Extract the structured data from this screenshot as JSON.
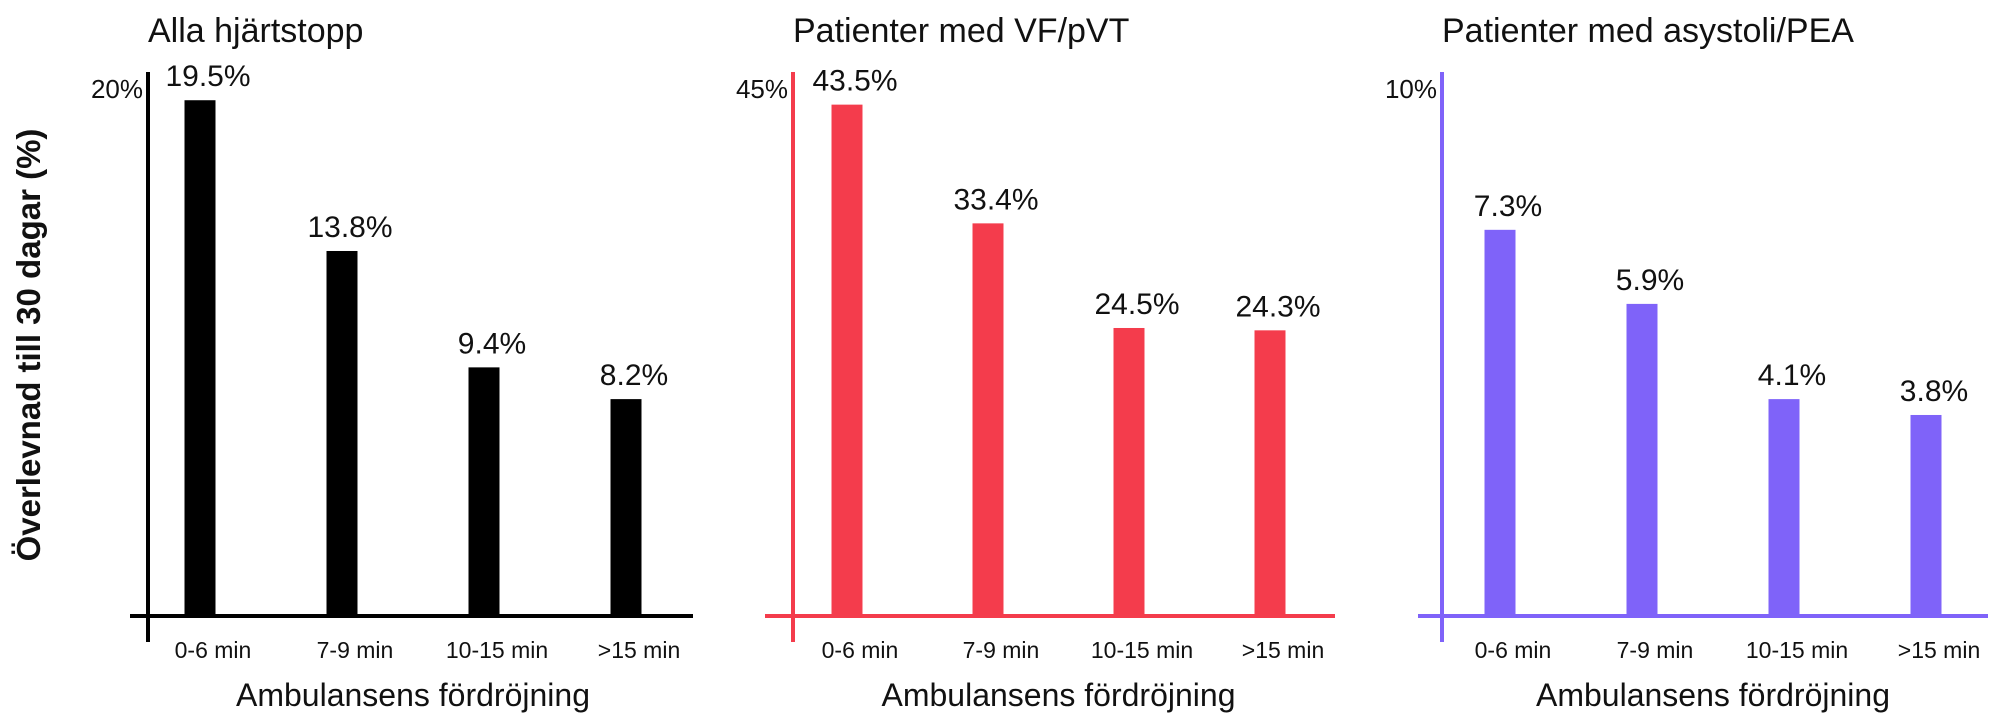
{
  "figure": {
    "ylabel": "Överlevnad till 30 dagar (%)"
  },
  "chart_data": [
    {
      "type": "bar",
      "title": "Alla hjärtstopp",
      "xlabel": "Ambulansens fördröjning",
      "ylabel": "Överlevnad till 30 dagar (%)",
      "categories": [
        "0-6 min",
        "7-9 min",
        "10-15 min",
        ">15 min"
      ],
      "values": [
        19.5,
        13.8,
        9.4,
        8.2
      ],
      "value_labels": [
        "19.5%",
        "13.8%",
        "9.4%",
        "8.2%"
      ],
      "ylim": [
        0,
        20
      ],
      "ytick_label": "20%",
      "color": "#000000",
      "grid": false
    },
    {
      "type": "bar",
      "title": "Patienter med VF/pVT",
      "xlabel": "Ambulansens fördröjning",
      "categories": [
        "0-6 min",
        "7-9 min",
        "10-15 min",
        ">15 min"
      ],
      "values": [
        43.5,
        33.4,
        24.5,
        24.3
      ],
      "value_labels": [
        "43.5%",
        "33.4%",
        "24.5%",
        "24.3%"
      ],
      "ylim": [
        0,
        45
      ],
      "ytick_label": "45%",
      "color": "#f43c4c",
      "grid": false
    },
    {
      "type": "bar",
      "title": "Patienter med asystoli/PEA",
      "xlabel": "Ambulansens fördröjning",
      "categories": [
        "0-6 min",
        "7-9 min",
        "10-15 min",
        ">15 min"
      ],
      "values": [
        7.3,
        5.9,
        4.1,
        3.8
      ],
      "value_labels": [
        "7.3%",
        "5.9%",
        "4.1%",
        "3.8%"
      ],
      "ylim": [
        0,
        10
      ],
      "ytick_label": "10%",
      "color": "#7f63f9",
      "grid": false
    }
  ]
}
